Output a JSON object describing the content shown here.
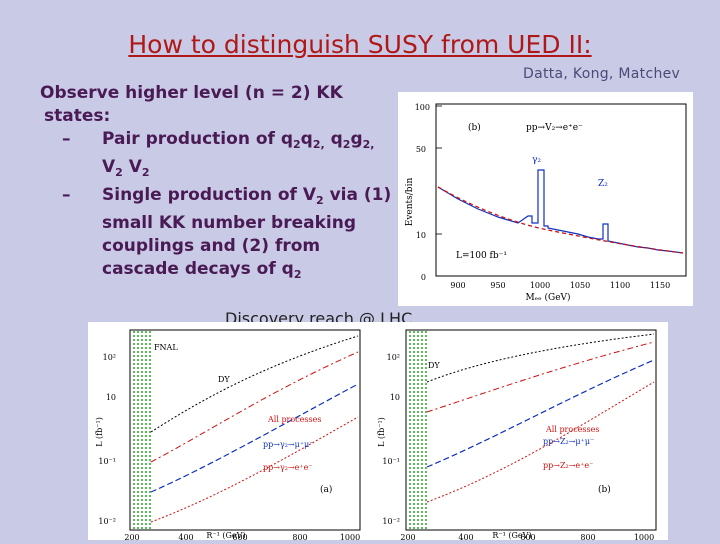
{
  "slide": {
    "title": "How to distinguish SUSY from UED II:",
    "authors": "Datta, Kong, Matchev",
    "bullet_main": "Observe higher level (n = 2) KK",
    "bullet_main_cont": "states:",
    "sub1_dash": "–",
    "sub1_prefix": "Pair production of q",
    "sub1_s1": "2",
    "sub1_a": "q",
    "sub1_s2": "2,",
    "sub1_b": " q",
    "sub1_s3": "2",
    "sub1_c": "g",
    "sub1_s4": "2,",
    "sub1_d": "V",
    "sub1_s5": "2",
    "sub1_e": " V",
    "sub1_s6": "2",
    "sub2_dash": "–",
    "sub2_prefix": "Single production of V",
    "sub2_s1": "2",
    "sub2_mid": " via (1) small KK number breaking couplings and (2) from cascade decays of q",
    "sub2_s2": "2",
    "discovery": "Discovery reach @ LHC"
  },
  "fig1": {
    "panel_label": "(b)",
    "process": "pp→V₂→e⁺e⁻",
    "peak_label_1": "γ₂",
    "peak_label_2": "Z₂",
    "lumi": "L=100 fb⁻¹",
    "ylabel": "Events/bin",
    "xlabel": "Mₑₑ (GeV)",
    "yticks": [
      "0",
      "10",
      "50",
      "100"
    ],
    "xticks": [
      "900",
      "950",
      "1000",
      "1050",
      "1100",
      "1150"
    ]
  },
  "fig2": {
    "left": {
      "panel_label": "(a)",
      "fnal": "FNAL",
      "dy": "DY",
      "all": "All processes",
      "leg1": "pp→γ₂→μ⁺μ⁻",
      "leg2": "pp→γ₂→e⁺e⁻",
      "ylabel": "L (fb⁻¹)",
      "xlabel": "R⁻¹ (GeV)",
      "yticks": [
        "10²",
        "10",
        "10⁻¹",
        "10⁻²"
      ],
      "xticks": [
        "200",
        "400",
        "600",
        "800",
        "1000"
      ]
    },
    "right": {
      "panel_label": "(b)",
      "dy": "DY",
      "all": "All processes",
      "leg1": "pp→Z₂→μ⁺μ⁻",
      "leg2": "pp→Z₂→e⁺e⁻",
      "ylabel": "L (fb⁻¹)",
      "xlabel": "R⁻¹ (GeV)",
      "yticks": [
        "10²",
        "10",
        "10⁻¹",
        "10⁻²"
      ],
      "xticks": [
        "200",
        "400",
        "600",
        "800",
        "1000"
      ]
    }
  },
  "colors": {
    "title": "#b01818",
    "bullets": "#4a1a55",
    "background": "#c9cbe6"
  }
}
